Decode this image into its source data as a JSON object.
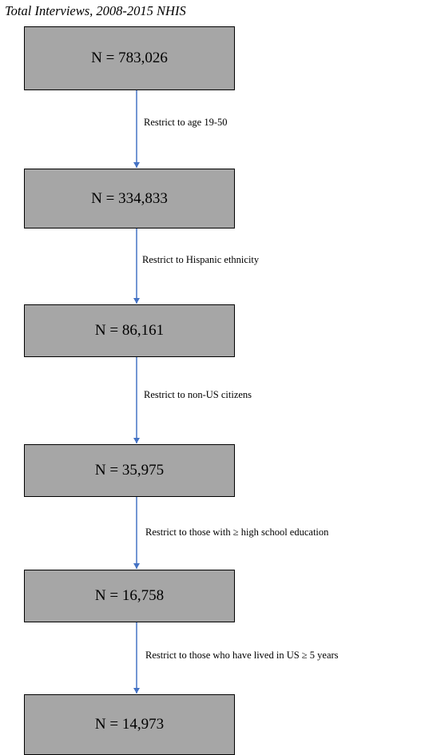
{
  "title": "Total Interviews, 2008-2015 NHIS",
  "colors": {
    "box_fill": "#a6a6a6",
    "box_border": "#000000",
    "arrow": "#4472c4"
  },
  "nodes": [
    {
      "label": "N = 783,026"
    },
    {
      "label": "N = 334,833"
    },
    {
      "label": "N = 86,161"
    },
    {
      "label": "N = 35,975"
    },
    {
      "label": "N = 16,758"
    },
    {
      "label": "N = 14,973"
    }
  ],
  "edges": [
    {
      "from": 0,
      "to": 1,
      "label": "Restrict to age 19-50"
    },
    {
      "from": 1,
      "to": 2,
      "label": "Restrict to Hispanic ethnicity"
    },
    {
      "from": 2,
      "to": 3,
      "label": "Restrict to non-US citizens"
    },
    {
      "from": 3,
      "to": 4,
      "label": "Restrict to those with ≥ high school education"
    },
    {
      "from": 4,
      "to": 5,
      "label": "Restrict to those who have lived in US ≥ 5 years"
    }
  ]
}
